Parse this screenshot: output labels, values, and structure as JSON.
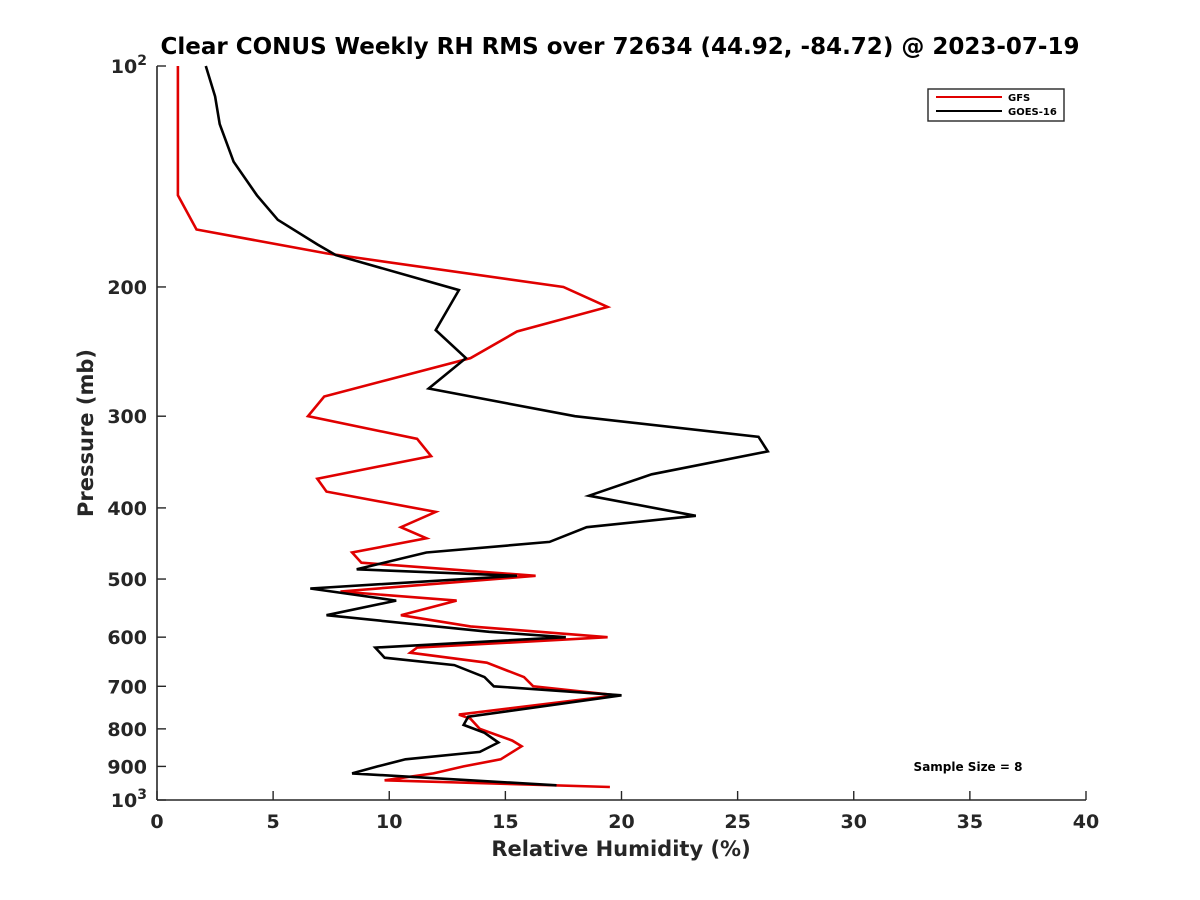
{
  "chart_data": {
    "type": "line",
    "title": "Clear CONUS Weekly RH RMS over 72634 (44.92, -84.72) @ 2023-07-19",
    "xlabel": "Relative Humidity (%)",
    "ylabel": "Pressure (mb)",
    "xlim": [
      0,
      40
    ],
    "ylim": [
      100,
      1000
    ],
    "yscale": "log",
    "y_reversed": true,
    "grid": false,
    "legend_position": "top-right",
    "x_ticks": [
      "0",
      "5",
      "10",
      "15",
      "20",
      "25",
      "30",
      "35",
      "40"
    ],
    "y_ticks": [
      {
        "value": 100,
        "base": "10",
        "exp": "2"
      },
      {
        "value": 200,
        "label": "200"
      },
      {
        "value": 300,
        "label": "300"
      },
      {
        "value": 400,
        "label": "400"
      },
      {
        "value": 500,
        "label": "500"
      },
      {
        "value": 600,
        "label": "600"
      },
      {
        "value": 700,
        "label": "700"
      },
      {
        "value": 800,
        "label": "800"
      },
      {
        "value": 900,
        "label": "900"
      },
      {
        "value": 1000,
        "base": "10",
        "exp": "3"
      }
    ],
    "annotation": "Sample Size = 8",
    "series": [
      {
        "name": "GFS",
        "color": "#e00000",
        "points": [
          [
            0.9,
            100
          ],
          [
            0.9,
            125
          ],
          [
            0.9,
            150
          ],
          [
            1.7,
            167
          ],
          [
            7.3,
            180
          ],
          [
            17.5,
            200
          ],
          [
            19.4,
            213
          ],
          [
            15.5,
            230
          ],
          [
            13.5,
            250
          ],
          [
            7.2,
            282
          ],
          [
            6.5,
            300
          ],
          [
            11.2,
            322
          ],
          [
            11.8,
            340
          ],
          [
            6.9,
            365
          ],
          [
            7.3,
            380
          ],
          [
            12.0,
            405
          ],
          [
            10.5,
            425
          ],
          [
            11.6,
            440
          ],
          [
            8.4,
            460
          ],
          [
            8.8,
            475
          ],
          [
            16.3,
            495
          ],
          [
            7.9,
            520
          ],
          [
            12.9,
            535
          ],
          [
            10.5,
            560
          ],
          [
            13.5,
            580
          ],
          [
            19.4,
            600
          ],
          [
            11.2,
            620
          ],
          [
            10.9,
            630
          ],
          [
            14.2,
            650
          ],
          [
            15.8,
            680
          ],
          [
            16.2,
            700
          ],
          [
            19.8,
            720
          ],
          [
            13.0,
            765
          ],
          [
            13.5,
            775
          ],
          [
            13.9,
            800
          ],
          [
            15.3,
            830
          ],
          [
            15.7,
            845
          ],
          [
            14.8,
            880
          ],
          [
            13.2,
            900
          ],
          [
            11.9,
            920
          ],
          [
            9.8,
            940
          ],
          [
            19.5,
            960
          ]
        ]
      },
      {
        "name": "GOES-16",
        "color": "#000000",
        "points": [
          [
            2.1,
            100
          ],
          [
            2.5,
            110
          ],
          [
            2.7,
            120
          ],
          [
            3.3,
            135
          ],
          [
            4.3,
            150
          ],
          [
            5.2,
            162
          ],
          [
            6.9,
            175
          ],
          [
            7.7,
            181
          ],
          [
            13.0,
            202
          ],
          [
            12.0,
            229
          ],
          [
            13.3,
            250
          ],
          [
            11.7,
            275
          ],
          [
            18.0,
            300
          ],
          [
            25.9,
            320
          ],
          [
            26.3,
            335
          ],
          [
            21.3,
            360
          ],
          [
            18.6,
            385
          ],
          [
            23.2,
            410
          ],
          [
            18.5,
            425
          ],
          [
            16.9,
            445
          ],
          [
            11.6,
            460
          ],
          [
            8.6,
            485
          ],
          [
            15.5,
            495
          ],
          [
            6.6,
            515
          ],
          [
            10.3,
            535
          ],
          [
            7.3,
            560
          ],
          [
            14.3,
            590
          ],
          [
            17.6,
            600
          ],
          [
            9.4,
            620
          ],
          [
            9.8,
            640
          ],
          [
            12.8,
            655
          ],
          [
            14.1,
            680
          ],
          [
            14.5,
            700
          ],
          [
            20.0,
            720
          ],
          [
            13.4,
            770
          ],
          [
            13.2,
            790
          ],
          [
            14.1,
            810
          ],
          [
            14.7,
            835
          ],
          [
            13.9,
            860
          ],
          [
            10.7,
            880
          ],
          [
            9.5,
            900
          ],
          [
            8.4,
            920
          ],
          [
            17.2,
            955
          ]
        ]
      }
    ]
  }
}
